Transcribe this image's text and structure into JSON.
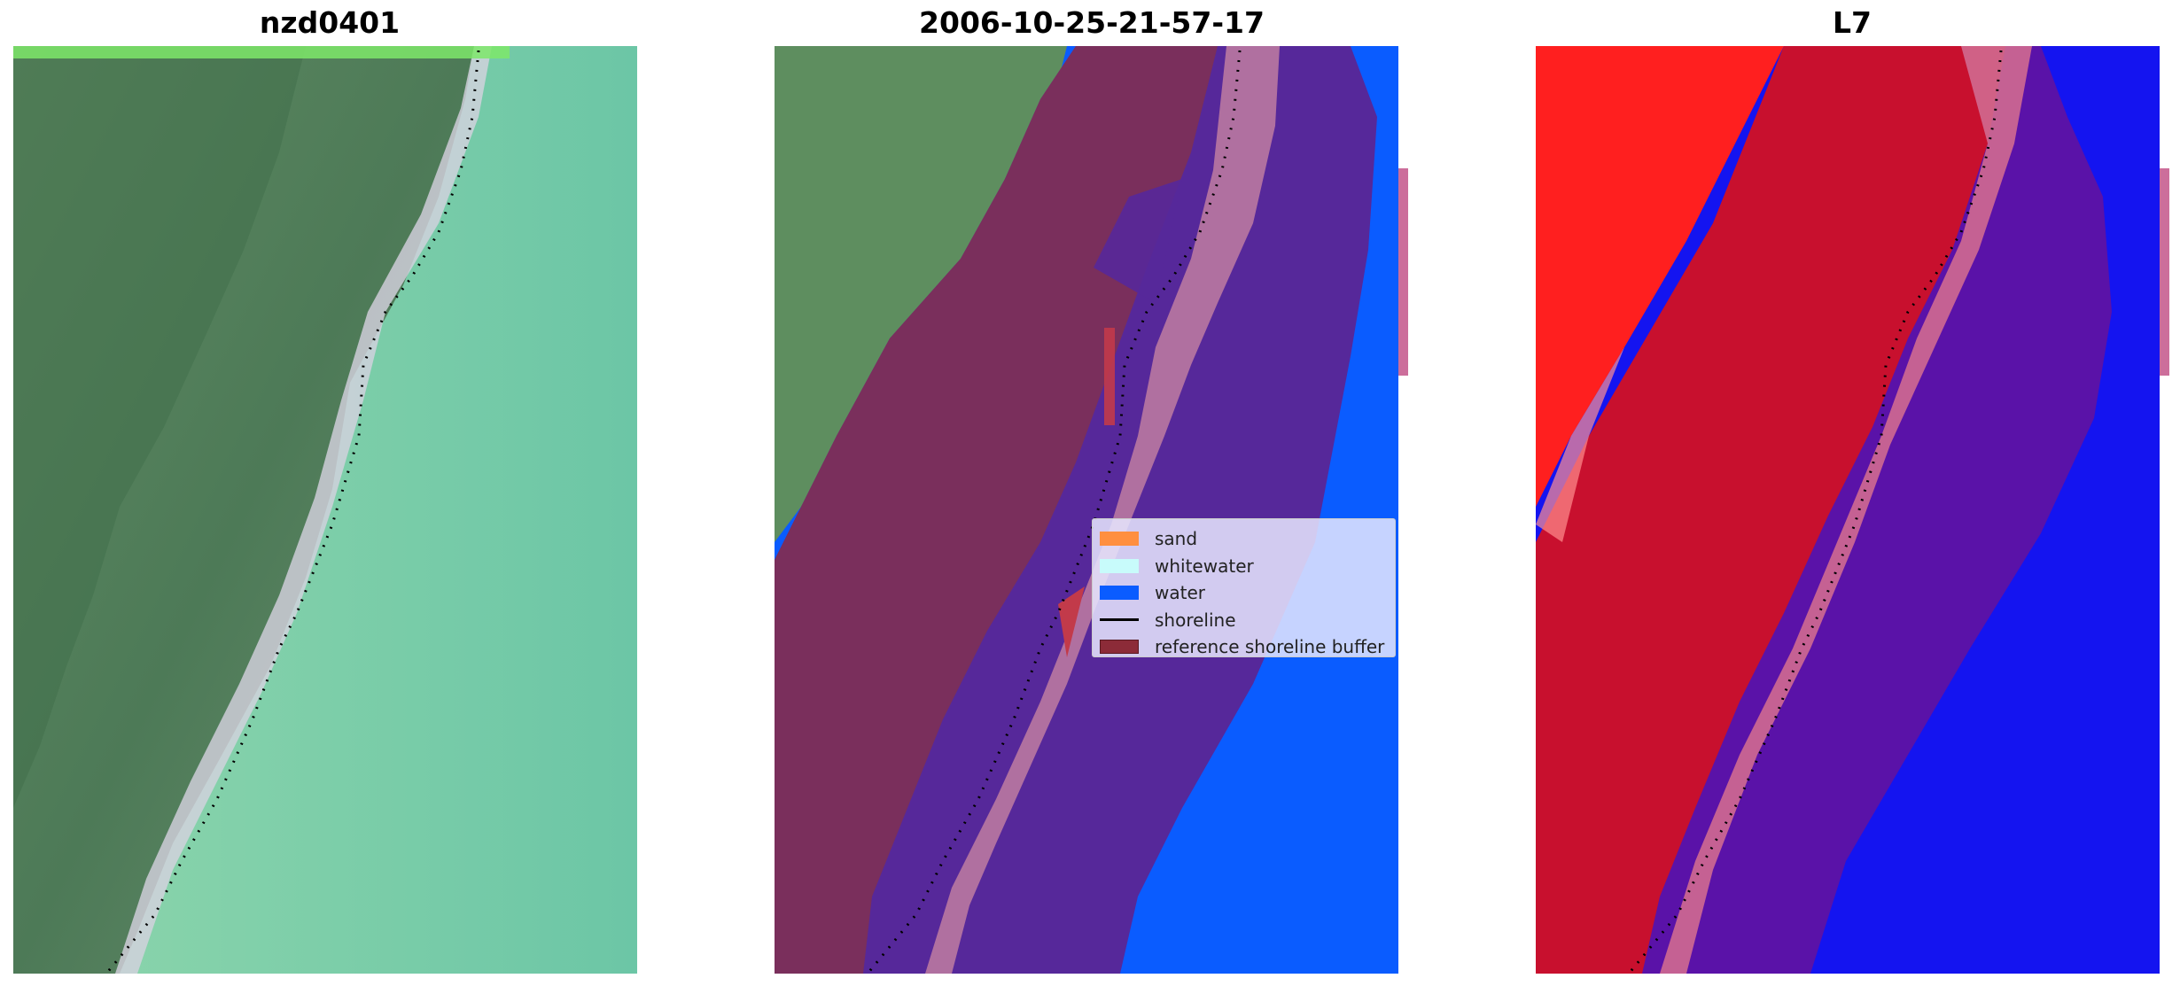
{
  "panels": {
    "left_title": "nzd0401",
    "middle_title": "2006-10-25-21-57-17",
    "right_title": "L7"
  },
  "legend": {
    "items": [
      {
        "label": "sand",
        "color": "#ff8f3f",
        "kind": "patch"
      },
      {
        "label": "whitewater",
        "color": "#c8fbfb",
        "kind": "patch"
      },
      {
        "label": "water",
        "color": "#0a5cff",
        "kind": "patch"
      },
      {
        "label": "shoreline",
        "color": "#000000",
        "kind": "line"
      },
      {
        "label": "reference shoreline buffer",
        "color": "#8c2b38",
        "kind": "patch"
      }
    ]
  },
  "colors": {
    "land_green": "#4e7d55",
    "sea_green": "#6cc8a8",
    "buffer_purple": "#56289a",
    "buffer_maroon": "#7a2f5c",
    "water_blue": "#0a5cff",
    "index_red": "#ff1a1a",
    "index_blue": "#1414f0"
  }
}
